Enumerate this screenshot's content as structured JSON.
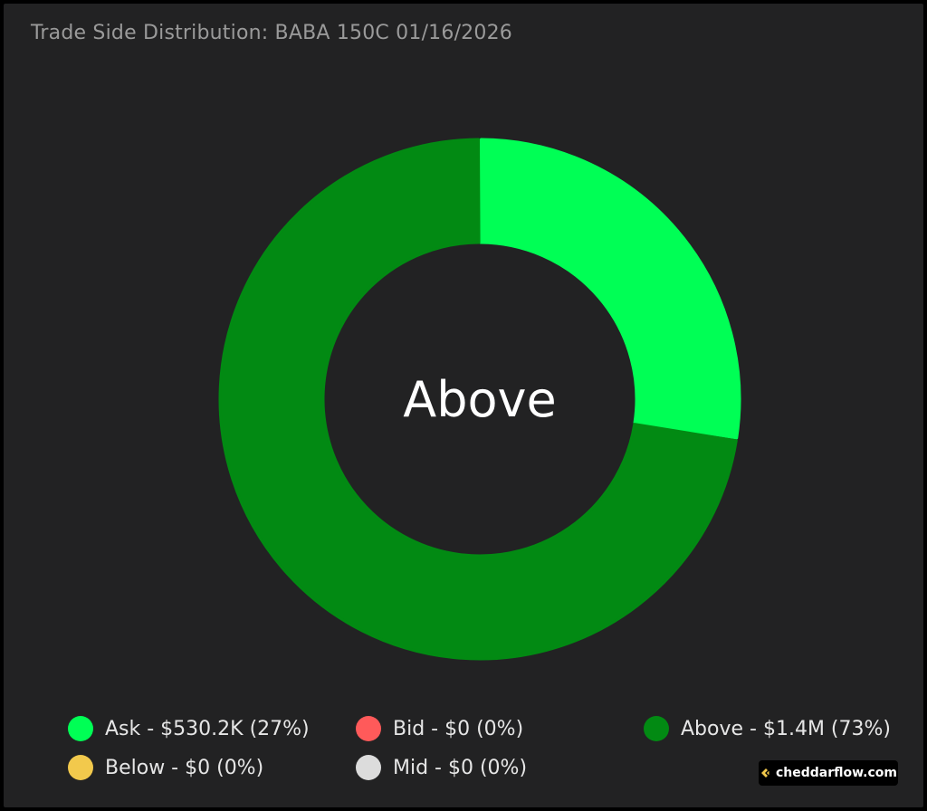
{
  "title": "Trade Side Distribution: BABA 150C 01/16/2026",
  "center_label": "Above",
  "brand": {
    "text": "cheddarflow.com",
    "icon": "cheddarflow-logo-icon"
  },
  "colors": {
    "Ask": "#00ff55",
    "Bid": "#ff5a5a",
    "Above": "#028a13",
    "Below": "#f2c94c",
    "Mid": "#dcdcdc"
  },
  "legend": [
    {
      "label": "Ask - $530.2K (27%)",
      "color": "#00ff55"
    },
    {
      "label": "Bid - $0 (0%)",
      "color": "#ff5a5a"
    },
    {
      "label": "Above - $1.4M (73%)",
      "color": "#028a13"
    },
    {
      "label": "Below - $0 (0%)",
      "color": "#f2c94c"
    },
    {
      "label": "Mid - $0 (0%)",
      "color": "#dcdcdc"
    }
  ],
  "chart_data": {
    "type": "pie",
    "title": "Trade Side Distribution: BABA 150C 01/16/2026",
    "categories": [
      "Ask",
      "Bid",
      "Above",
      "Below",
      "Mid"
    ],
    "values": [
      530200,
      0,
      1400000,
      0,
      0
    ],
    "percentages": [
      27,
      0,
      73,
      0,
      0
    ],
    "center_label": "Above",
    "legend_placement": "bottom"
  }
}
